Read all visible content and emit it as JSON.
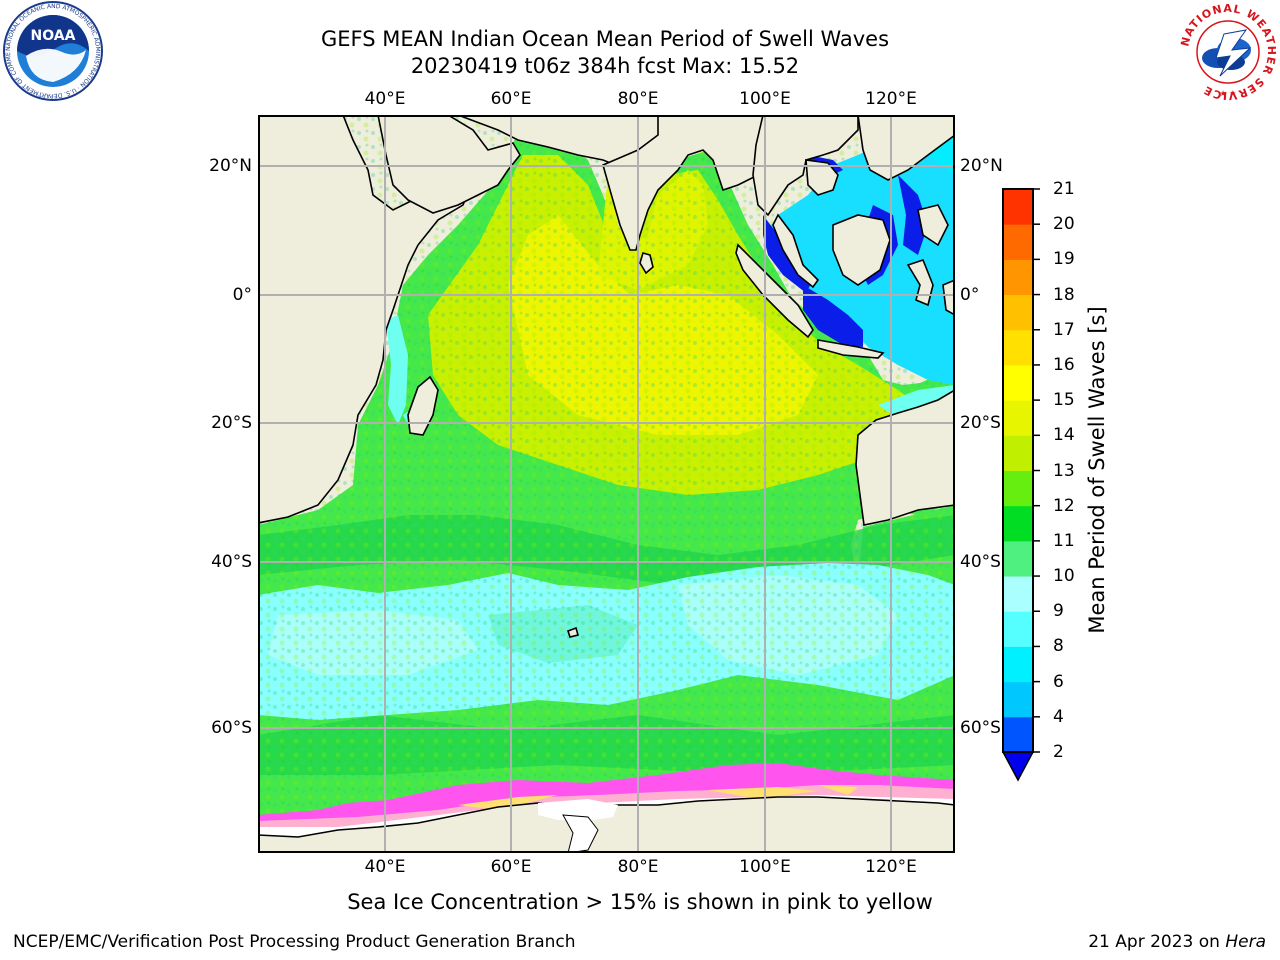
{
  "title_line1": "GEFS MEAN Indian Ocean Mean Period of Swell Waves",
  "title_line2": "20230419 t06z 384h fcst   Max: 15.52",
  "map": {
    "lon_ticks": [
      "40°E",
      "60°E",
      "80°E",
      "100°E",
      "120°E"
    ],
    "lat_ticks": [
      "20°N",
      "0°",
      "20°S",
      "40°S",
      "60°S"
    ],
    "extent": {
      "lon_min": 20,
      "lon_max": 130,
      "lat_min": -70,
      "lat_max": 28
    },
    "grid": true,
    "land_color": "#efeddc",
    "sea_ice_note_colors": [
      "#ff55ee",
      "#ffb0d0",
      "#ffe070"
    ]
  },
  "colorbar": {
    "label": "Mean Period of Swell Waves [s]",
    "ticks": [
      "2",
      "4",
      "6",
      "8",
      "9",
      "10",
      "11",
      "12",
      "13",
      "14",
      "15",
      "16",
      "17",
      "18",
      "19",
      "20",
      "21"
    ],
    "colors": [
      "#0055ff",
      "#00c8ff",
      "#00f0ff",
      "#55ffff",
      "#aaffff",
      "#50f080",
      "#00dd22",
      "#66ee11",
      "#c0f000",
      "#e8f500",
      "#ffff00",
      "#ffe000",
      "#ffc000",
      "#ff9500",
      "#ff6a00",
      "#ff3300",
      "#ff0000"
    ],
    "extend_color": "#0000ee"
  },
  "caption": "Sea Ice Concentration > 15% is shown in pink to yellow",
  "footer_left": "NCEP/EMC/Verification Post Processing Product Generation Branch",
  "footer_date": "21 Apr 2023 on ",
  "footer_host": "Hera",
  "logos": {
    "left": "NOAA",
    "left_ring": "NATIONAL OCEANIC AND ATMOSPHERIC ADMINISTRATION · U.S. DEPARTMENT OF COMMERCE",
    "right": "NATIONAL WEATHER SERVICE"
  }
}
